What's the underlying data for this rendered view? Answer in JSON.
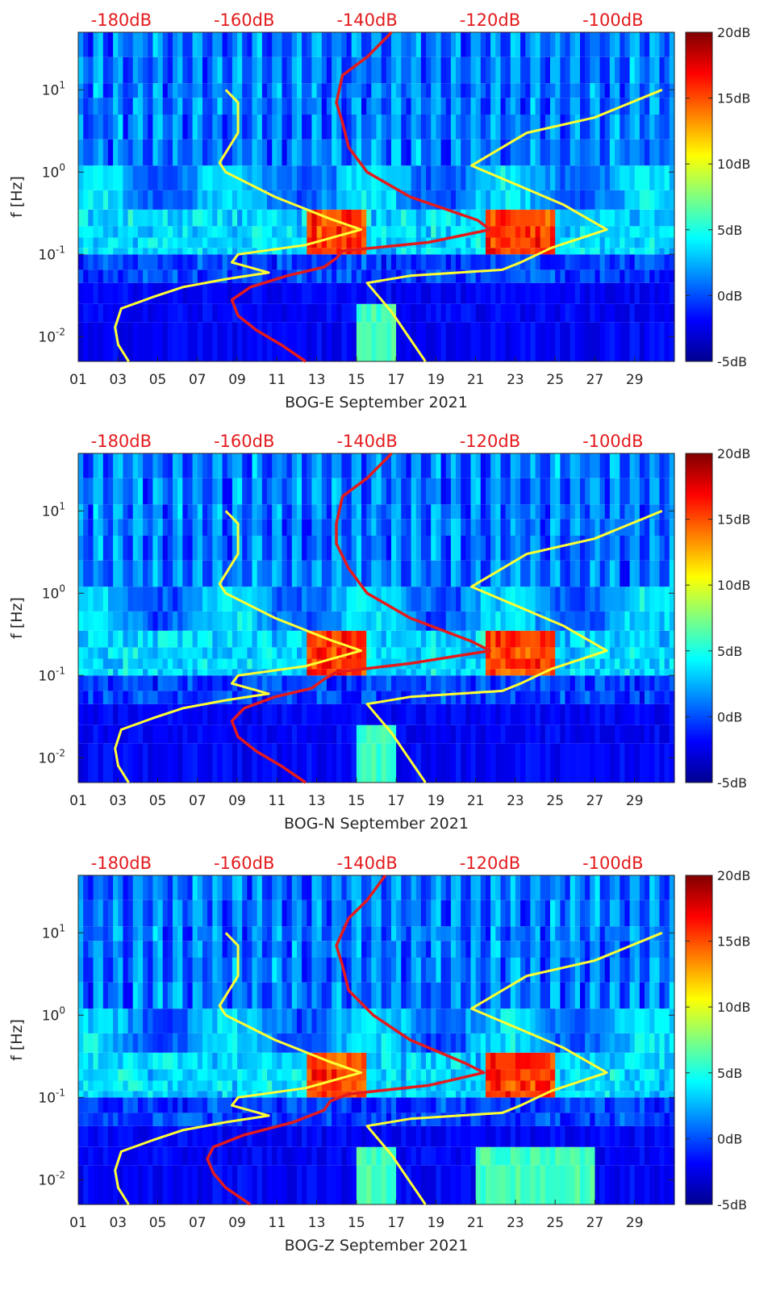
{
  "chart_data": [
    {
      "type": "heatmap",
      "station": "BOG-E",
      "xlabel": "BOG-E September 2021",
      "ylabel": "f [Hz]",
      "x_ticks": [
        "01",
        "03",
        "05",
        "07",
        "09",
        "11",
        "13",
        "15",
        "17",
        "19",
        "21",
        "23",
        "25",
        "27",
        "29"
      ],
      "x_tick_values": [
        1,
        3,
        5,
        7,
        9,
        11,
        13,
        15,
        17,
        19,
        21,
        23,
        25,
        27,
        29
      ],
      "xlim": [
        1,
        31
      ],
      "y_ticks": [
        "10^-2",
        "10^-1",
        "10^0",
        "10^1"
      ],
      "y_tick_values": [
        0.01,
        0.1,
        1,
        10
      ],
      "ylim": [
        0.005,
        50
      ],
      "top_ticks": [
        "-180dB",
        "-160dB",
        "-140dB",
        "-120dB",
        "-100dB"
      ],
      "top_tick_values": [
        -180,
        -160,
        -140,
        -120,
        -100
      ],
      "top_xlim": [
        -187,
        -90
      ],
      "colorbar_ticks": [
        "-5dB",
        "0dB",
        "5dB",
        "10dB",
        "15dB",
        "20dB"
      ],
      "colorbar_values": [
        -5,
        0,
        5,
        10,
        15,
        20
      ],
      "clim": [
        -5,
        20
      ],
      "series": [
        {
          "name": "noise model low (yellow)",
          "color": "#ffff33",
          "points": [
            [
              -178.8,
              0.005
            ],
            [
              -180.5,
              0.008
            ],
            [
              -181,
              0.013
            ],
            [
              -180,
              0.022
            ],
            [
              -175,
              0.03
            ],
            [
              -170,
              0.04
            ],
            [
              -163,
              0.05
            ],
            [
              -156,
              0.06
            ],
            [
              -162,
              0.08
            ],
            [
              -161,
              0.1
            ],
            [
              -150,
              0.13
            ],
            [
              -141,
              0.2
            ],
            [
              -146,
              0.27
            ],
            [
              -155,
              0.5
            ],
            [
              -163,
              1.0
            ],
            [
              -164,
              1.3
            ],
            [
              -161,
              3
            ],
            [
              -161,
              7
            ],
            [
              -163,
              10
            ]
          ]
        },
        {
          "name": "noise model high (yellow)",
          "color": "#ffff33",
          "points": [
            [
              -130.5,
              0.005
            ],
            [
              -136,
              0.02
            ],
            [
              -140,
              0.045
            ],
            [
              -133,
              0.055
            ],
            [
              -118,
              0.065
            ],
            [
              -115,
              0.08
            ],
            [
              -110,
              0.12
            ],
            [
              -101,
              0.2
            ],
            [
              -108,
              0.4
            ],
            [
              -123,
              1.2
            ],
            [
              -114,
              3
            ],
            [
              -103,
              4.6
            ],
            [
              -92,
              10
            ]
          ]
        },
        {
          "name": "spectral estimate (red)",
          "color": "#e41a1c",
          "points": [
            [
              -150,
              0.005
            ],
            [
              -154,
              0.008
            ],
            [
              -158,
              0.012
            ],
            [
              -161,
              0.018
            ],
            [
              -162,
              0.028
            ],
            [
              -159,
              0.04
            ],
            [
              -153,
              0.055
            ],
            [
              -147,
              0.07
            ],
            [
              -145,
              0.09
            ],
            [
              -144,
              0.11
            ],
            [
              -130,
              0.14
            ],
            [
              -120,
              0.2
            ],
            [
              -122,
              0.26
            ],
            [
              -133,
              0.5
            ],
            [
              -140,
              1.0
            ],
            [
              -143,
              2
            ],
            [
              -144,
              4
            ],
            [
              -145,
              7
            ],
            [
              -144,
              15
            ],
            [
              -140,
              25
            ],
            [
              -136,
              50
            ]
          ]
        }
      ]
    },
    {
      "type": "heatmap",
      "station": "BOG-N",
      "xlabel": "BOG-N September 2021",
      "ylabel": "f [Hz]",
      "x_ticks": [
        "01",
        "03",
        "05",
        "07",
        "09",
        "11",
        "13",
        "15",
        "17",
        "19",
        "21",
        "23",
        "25",
        "27",
        "29"
      ],
      "x_tick_values": [
        1,
        3,
        5,
        7,
        9,
        11,
        13,
        15,
        17,
        19,
        21,
        23,
        25,
        27,
        29
      ],
      "xlim": [
        1,
        31
      ],
      "y_ticks": [
        "10^-2",
        "10^-1",
        "10^0",
        "10^1"
      ],
      "y_tick_values": [
        0.01,
        0.1,
        1,
        10
      ],
      "ylim": [
        0.005,
        50
      ],
      "top_ticks": [
        "-180dB",
        "-160dB",
        "-140dB",
        "-120dB",
        "-100dB"
      ],
      "top_tick_values": [
        -180,
        -160,
        -140,
        -120,
        -100
      ],
      "top_xlim": [
        -187,
        -90
      ],
      "colorbar_ticks": [
        "-5dB",
        "0dB",
        "5dB",
        "10dB",
        "15dB",
        "20dB"
      ],
      "colorbar_values": [
        -5,
        0,
        5,
        10,
        15,
        20
      ],
      "clim": [
        -5,
        20
      ],
      "series": [
        {
          "name": "noise model low (yellow)",
          "color": "#ffff33",
          "points": [
            [
              -178.8,
              0.005
            ],
            [
              -180.5,
              0.008
            ],
            [
              -181,
              0.013
            ],
            [
              -180,
              0.022
            ],
            [
              -175,
              0.03
            ],
            [
              -170,
              0.04
            ],
            [
              -163,
              0.05
            ],
            [
              -156,
              0.06
            ],
            [
              -162,
              0.08
            ],
            [
              -161,
              0.1
            ],
            [
              -150,
              0.13
            ],
            [
              -141,
              0.2
            ],
            [
              -146,
              0.27
            ],
            [
              -155,
              0.5
            ],
            [
              -163,
              1.0
            ],
            [
              -164,
              1.3
            ],
            [
              -161,
              3
            ],
            [
              -161,
              7
            ],
            [
              -163,
              10
            ]
          ]
        },
        {
          "name": "noise model high (yellow)",
          "color": "#ffff33",
          "points": [
            [
              -130.5,
              0.005
            ],
            [
              -136,
              0.02
            ],
            [
              -140,
              0.045
            ],
            [
              -133,
              0.055
            ],
            [
              -118,
              0.065
            ],
            [
              -115,
              0.08
            ],
            [
              -110,
              0.12
            ],
            [
              -101,
              0.2
            ],
            [
              -108,
              0.4
            ],
            [
              -123,
              1.2
            ],
            [
              -114,
              3
            ],
            [
              -103,
              4.6
            ],
            [
              -92,
              10
            ]
          ]
        },
        {
          "name": "spectral estimate (red)",
          "color": "#e41a1c",
          "points": [
            [
              -150,
              0.005
            ],
            [
              -154,
              0.008
            ],
            [
              -158,
              0.012
            ],
            [
              -161,
              0.018
            ],
            [
              -162,
              0.028
            ],
            [
              -160,
              0.04
            ],
            [
              -155,
              0.055
            ],
            [
              -149,
              0.07
            ],
            [
              -147,
              0.09
            ],
            [
              -145,
              0.11
            ],
            [
              -133,
              0.14
            ],
            [
              -120,
              0.2
            ],
            [
              -123,
              0.26
            ],
            [
              -133,
              0.5
            ],
            [
              -140,
              1.0
            ],
            [
              -143,
              2
            ],
            [
              -145,
              4
            ],
            [
              -145,
              7
            ],
            [
              -144,
              15
            ],
            [
              -140,
              25
            ],
            [
              -136,
              50
            ]
          ]
        }
      ]
    },
    {
      "type": "heatmap",
      "station": "BOG-Z",
      "xlabel": "BOG-Z September 2021",
      "ylabel": "f [Hz]",
      "x_ticks": [
        "01",
        "03",
        "05",
        "07",
        "09",
        "11",
        "13",
        "15",
        "17",
        "19",
        "21",
        "23",
        "25",
        "27",
        "29"
      ],
      "x_tick_values": [
        1,
        3,
        5,
        7,
        9,
        11,
        13,
        15,
        17,
        19,
        21,
        23,
        25,
        27,
        29
      ],
      "xlim": [
        1,
        31
      ],
      "y_ticks": [
        "10^-2",
        "10^-1",
        "10^0",
        "10^1"
      ],
      "y_tick_values": [
        0.01,
        0.1,
        1,
        10
      ],
      "ylim": [
        0.005,
        50
      ],
      "top_ticks": [
        "-180dB",
        "-160dB",
        "-140dB",
        "-120dB",
        "-100dB"
      ],
      "top_tick_values": [
        -180,
        -160,
        -140,
        -120,
        -100
      ],
      "top_xlim": [
        -187,
        -90
      ],
      "colorbar_ticks": [
        "-5dB",
        "0dB",
        "5dB",
        "10dB",
        "15dB",
        "20dB"
      ],
      "colorbar_values": [
        -5,
        0,
        5,
        10,
        15,
        20
      ],
      "clim": [
        -5,
        20
      ],
      "series": [
        {
          "name": "noise model low (yellow)",
          "color": "#ffff33",
          "points": [
            [
              -178.8,
              0.005
            ],
            [
              -180.5,
              0.008
            ],
            [
              -181,
              0.013
            ],
            [
              -180,
              0.022
            ],
            [
              -175,
              0.03
            ],
            [
              -170,
              0.04
            ],
            [
              -163,
              0.05
            ],
            [
              -156,
              0.06
            ],
            [
              -162,
              0.08
            ],
            [
              -161,
              0.1
            ],
            [
              -150,
              0.13
            ],
            [
              -141,
              0.2
            ],
            [
              -146,
              0.27
            ],
            [
              -155,
              0.5
            ],
            [
              -163,
              1.0
            ],
            [
              -164,
              1.3
            ],
            [
              -161,
              3
            ],
            [
              -161,
              7
            ],
            [
              -163,
              10
            ]
          ]
        },
        {
          "name": "noise model high (yellow)",
          "color": "#ffff33",
          "points": [
            [
              -130.5,
              0.005
            ],
            [
              -136,
              0.02
            ],
            [
              -140,
              0.045
            ],
            [
              -133,
              0.055
            ],
            [
              -118,
              0.065
            ],
            [
              -115,
              0.08
            ],
            [
              -110,
              0.12
            ],
            [
              -101,
              0.2
            ],
            [
              -108,
              0.4
            ],
            [
              -123,
              1.2
            ],
            [
              -114,
              3
            ],
            [
              -103,
              4.6
            ],
            [
              -92,
              10
            ]
          ]
        },
        {
          "name": "spectral estimate (red)",
          "color": "#e41a1c",
          "points": [
            [
              -159,
              0.005
            ],
            [
              -163,
              0.008
            ],
            [
              -165,
              0.012
            ],
            [
              -166,
              0.018
            ],
            [
              -165,
              0.025
            ],
            [
              -160,
              0.035
            ],
            [
              -152,
              0.05
            ],
            [
              -147,
              0.07
            ],
            [
              -146,
              0.09
            ],
            [
              -143,
              0.11
            ],
            [
              -130,
              0.14
            ],
            [
              -121,
              0.2
            ],
            [
              -124,
              0.26
            ],
            [
              -133,
              0.5
            ],
            [
              -139,
              1.0
            ],
            [
              -143,
              2
            ],
            [
              -144,
              4
            ],
            [
              -145,
              7
            ],
            [
              -143,
              15
            ],
            [
              -140,
              25
            ],
            [
              -137,
              50
            ]
          ]
        }
      ]
    }
  ]
}
